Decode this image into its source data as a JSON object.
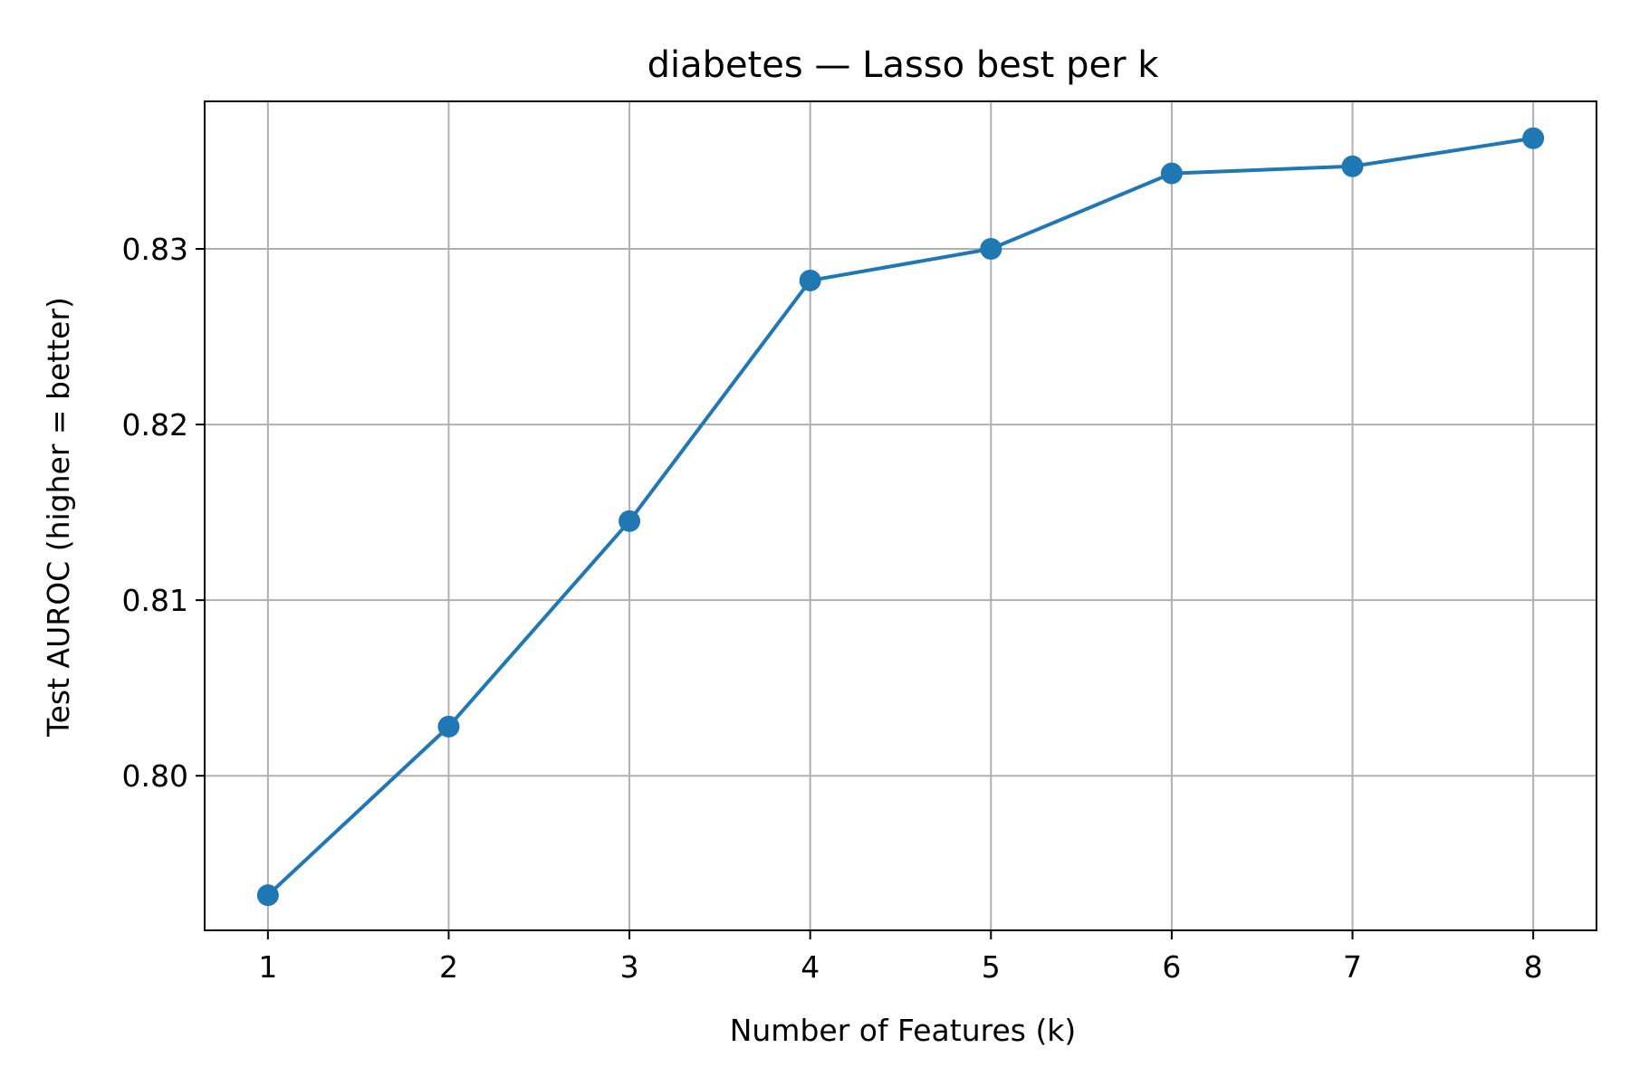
{
  "chart_data": {
    "type": "line",
    "title": "diabetes — Lasso best per k",
    "xlabel": "Number of Features (k)",
    "ylabel": "Test AUROC (higher = better)",
    "x": [
      1,
      2,
      3,
      4,
      5,
      6,
      7,
      8
    ],
    "series": [
      {
        "values": [
          0.7932,
          0.8028,
          0.8145,
          0.8282,
          0.83,
          0.8343,
          0.8347,
          0.8363
        ],
        "color": "#1f77b4",
        "marker": "circle"
      }
    ],
    "xticks": [
      "1",
      "2",
      "3",
      "4",
      "5",
      "6",
      "7",
      "8"
    ],
    "yticks": [
      "0.80",
      "0.81",
      "0.82",
      "0.83"
    ],
    "ytick_values": [
      0.8,
      0.81,
      0.82,
      0.83
    ],
    "xlim": [
      0.65,
      8.35
    ],
    "ylim": [
      0.7912,
      0.8384
    ],
    "grid": true,
    "legend": "none"
  }
}
